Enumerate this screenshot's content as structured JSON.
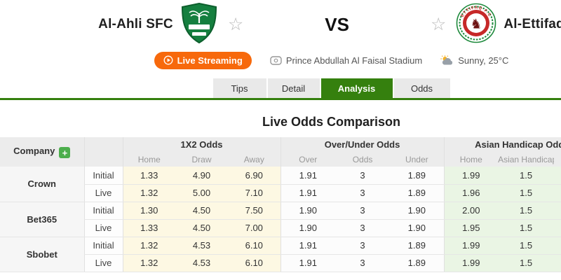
{
  "header": {
    "home_team": {
      "name": "Al-Ahli SFC"
    },
    "away_team": {
      "name": "Al-Ettifaq",
      "badge_text": "ETTIFAQ F.C"
    },
    "vs_label": "VS",
    "live_streaming_label": "Live Streaming",
    "venue": "Prince Abdullah Al Faisal Stadium",
    "weather": "Sunny, 25°C"
  },
  "tabs": [
    {
      "label": "Tips",
      "active": false
    },
    {
      "label": "Detail",
      "active": false
    },
    {
      "label": "Analysis",
      "active": true
    },
    {
      "label": "Odds",
      "active": false
    }
  ],
  "main": {
    "title": "Live Odds Comparison",
    "odds_table": {
      "company_header": "Company",
      "add_company_label": "+",
      "groups": [
        {
          "label": "1X2 Odds",
          "cols": [
            "Home",
            "Draw",
            "Away"
          ]
        },
        {
          "label": "Over/Under Odds",
          "cols": [
            "Over",
            "Odds",
            "Under"
          ]
        },
        {
          "label": "Asian Handicap Odds",
          "cols": [
            "Home",
            "Asian Handicap"
          ]
        }
      ],
      "rows": [
        {
          "company": "Crown",
          "stage": "Initial",
          "x12": [
            "1.33",
            "4.90",
            "6.90"
          ],
          "ou": [
            "1.91",
            "3",
            "1.89"
          ],
          "ah": [
            "1.99",
            "1.5"
          ]
        },
        {
          "company": "Crown",
          "stage": "Live",
          "x12": [
            "1.32",
            "5.00",
            "7.10"
          ],
          "ou": [
            "1.91",
            "3",
            "1.89"
          ],
          "ah": [
            "1.96",
            "1.5"
          ]
        },
        {
          "company": "Bet365",
          "stage": "Initial",
          "x12": [
            "1.30",
            "4.50",
            "7.50"
          ],
          "ou": [
            "1.90",
            "3",
            "1.90"
          ],
          "ah": [
            "2.00",
            "1.5"
          ]
        },
        {
          "company": "Bet365",
          "stage": "Live",
          "x12": [
            "1.33",
            "4.50",
            "7.00"
          ],
          "ou": [
            "1.90",
            "3",
            "1.90"
          ],
          "ah": [
            "1.95",
            "1.5"
          ]
        },
        {
          "company": "Sbobet",
          "stage": "Initial",
          "x12": [
            "1.32",
            "4.53",
            "6.10"
          ],
          "ou": [
            "1.91",
            "3",
            "1.89"
          ],
          "ah": [
            "1.99",
            "1.5"
          ]
        },
        {
          "company": "Sbobet",
          "stage": "Live",
          "x12": [
            "1.32",
            "4.53",
            "6.10"
          ],
          "ou": [
            "1.91",
            "3",
            "1.89"
          ],
          "ah": [
            "1.99",
            "1.5"
          ]
        }
      ]
    }
  },
  "icons": {
    "star": "☆",
    "play": "play-triangle",
    "plus": "+"
  },
  "colors": {
    "accent_green": "#35800e",
    "button_orange": "#f7690c",
    "cell_yellow": "#fdf8e3",
    "cell_green": "#eaf5e4",
    "add_button_green": "#4cae4c",
    "home_badge_green": "#157f3f",
    "away_badge_red": "#c62828"
  }
}
